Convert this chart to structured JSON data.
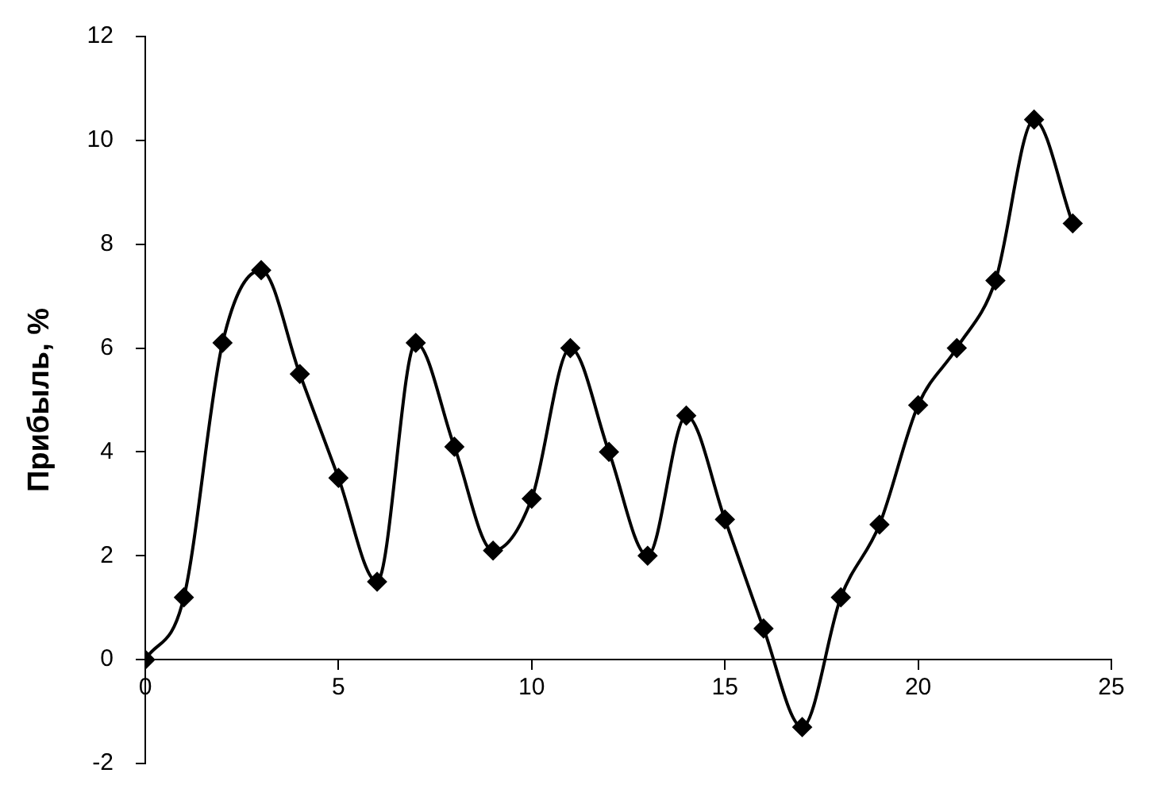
{
  "chart_data": {
    "type": "line",
    "ylabel": "Прибыль, %",
    "x": [
      0,
      1,
      2,
      3,
      4,
      5,
      6,
      7,
      8,
      9,
      10,
      11,
      12,
      13,
      14,
      15,
      16,
      17,
      18,
      19,
      20,
      21,
      22,
      23,
      24
    ],
    "series": [
      {
        "color": "#000000",
        "values": [
          0,
          1.2,
          6.1,
          7.5,
          5.5,
          3.5,
          1.5,
          6.1,
          4.1,
          2.1,
          3.1,
          6.0,
          4.0,
          2.0,
          4.7,
          2.7,
          0.6,
          -1.3,
          1.2,
          2.6,
          4.9,
          6.0,
          7.3,
          10.4,
          8.4
        ]
      }
    ],
    "xlim": [
      0,
      25
    ],
    "xticks": [
      0,
      5,
      10,
      15,
      20,
      25
    ],
    "ylim": [
      -2,
      12
    ],
    "yticks": [
      -2,
      0,
      2,
      4,
      6,
      8,
      10,
      12
    ],
    "grid": false,
    "legend": false,
    "marker": "diamond",
    "line_style": "solid"
  }
}
